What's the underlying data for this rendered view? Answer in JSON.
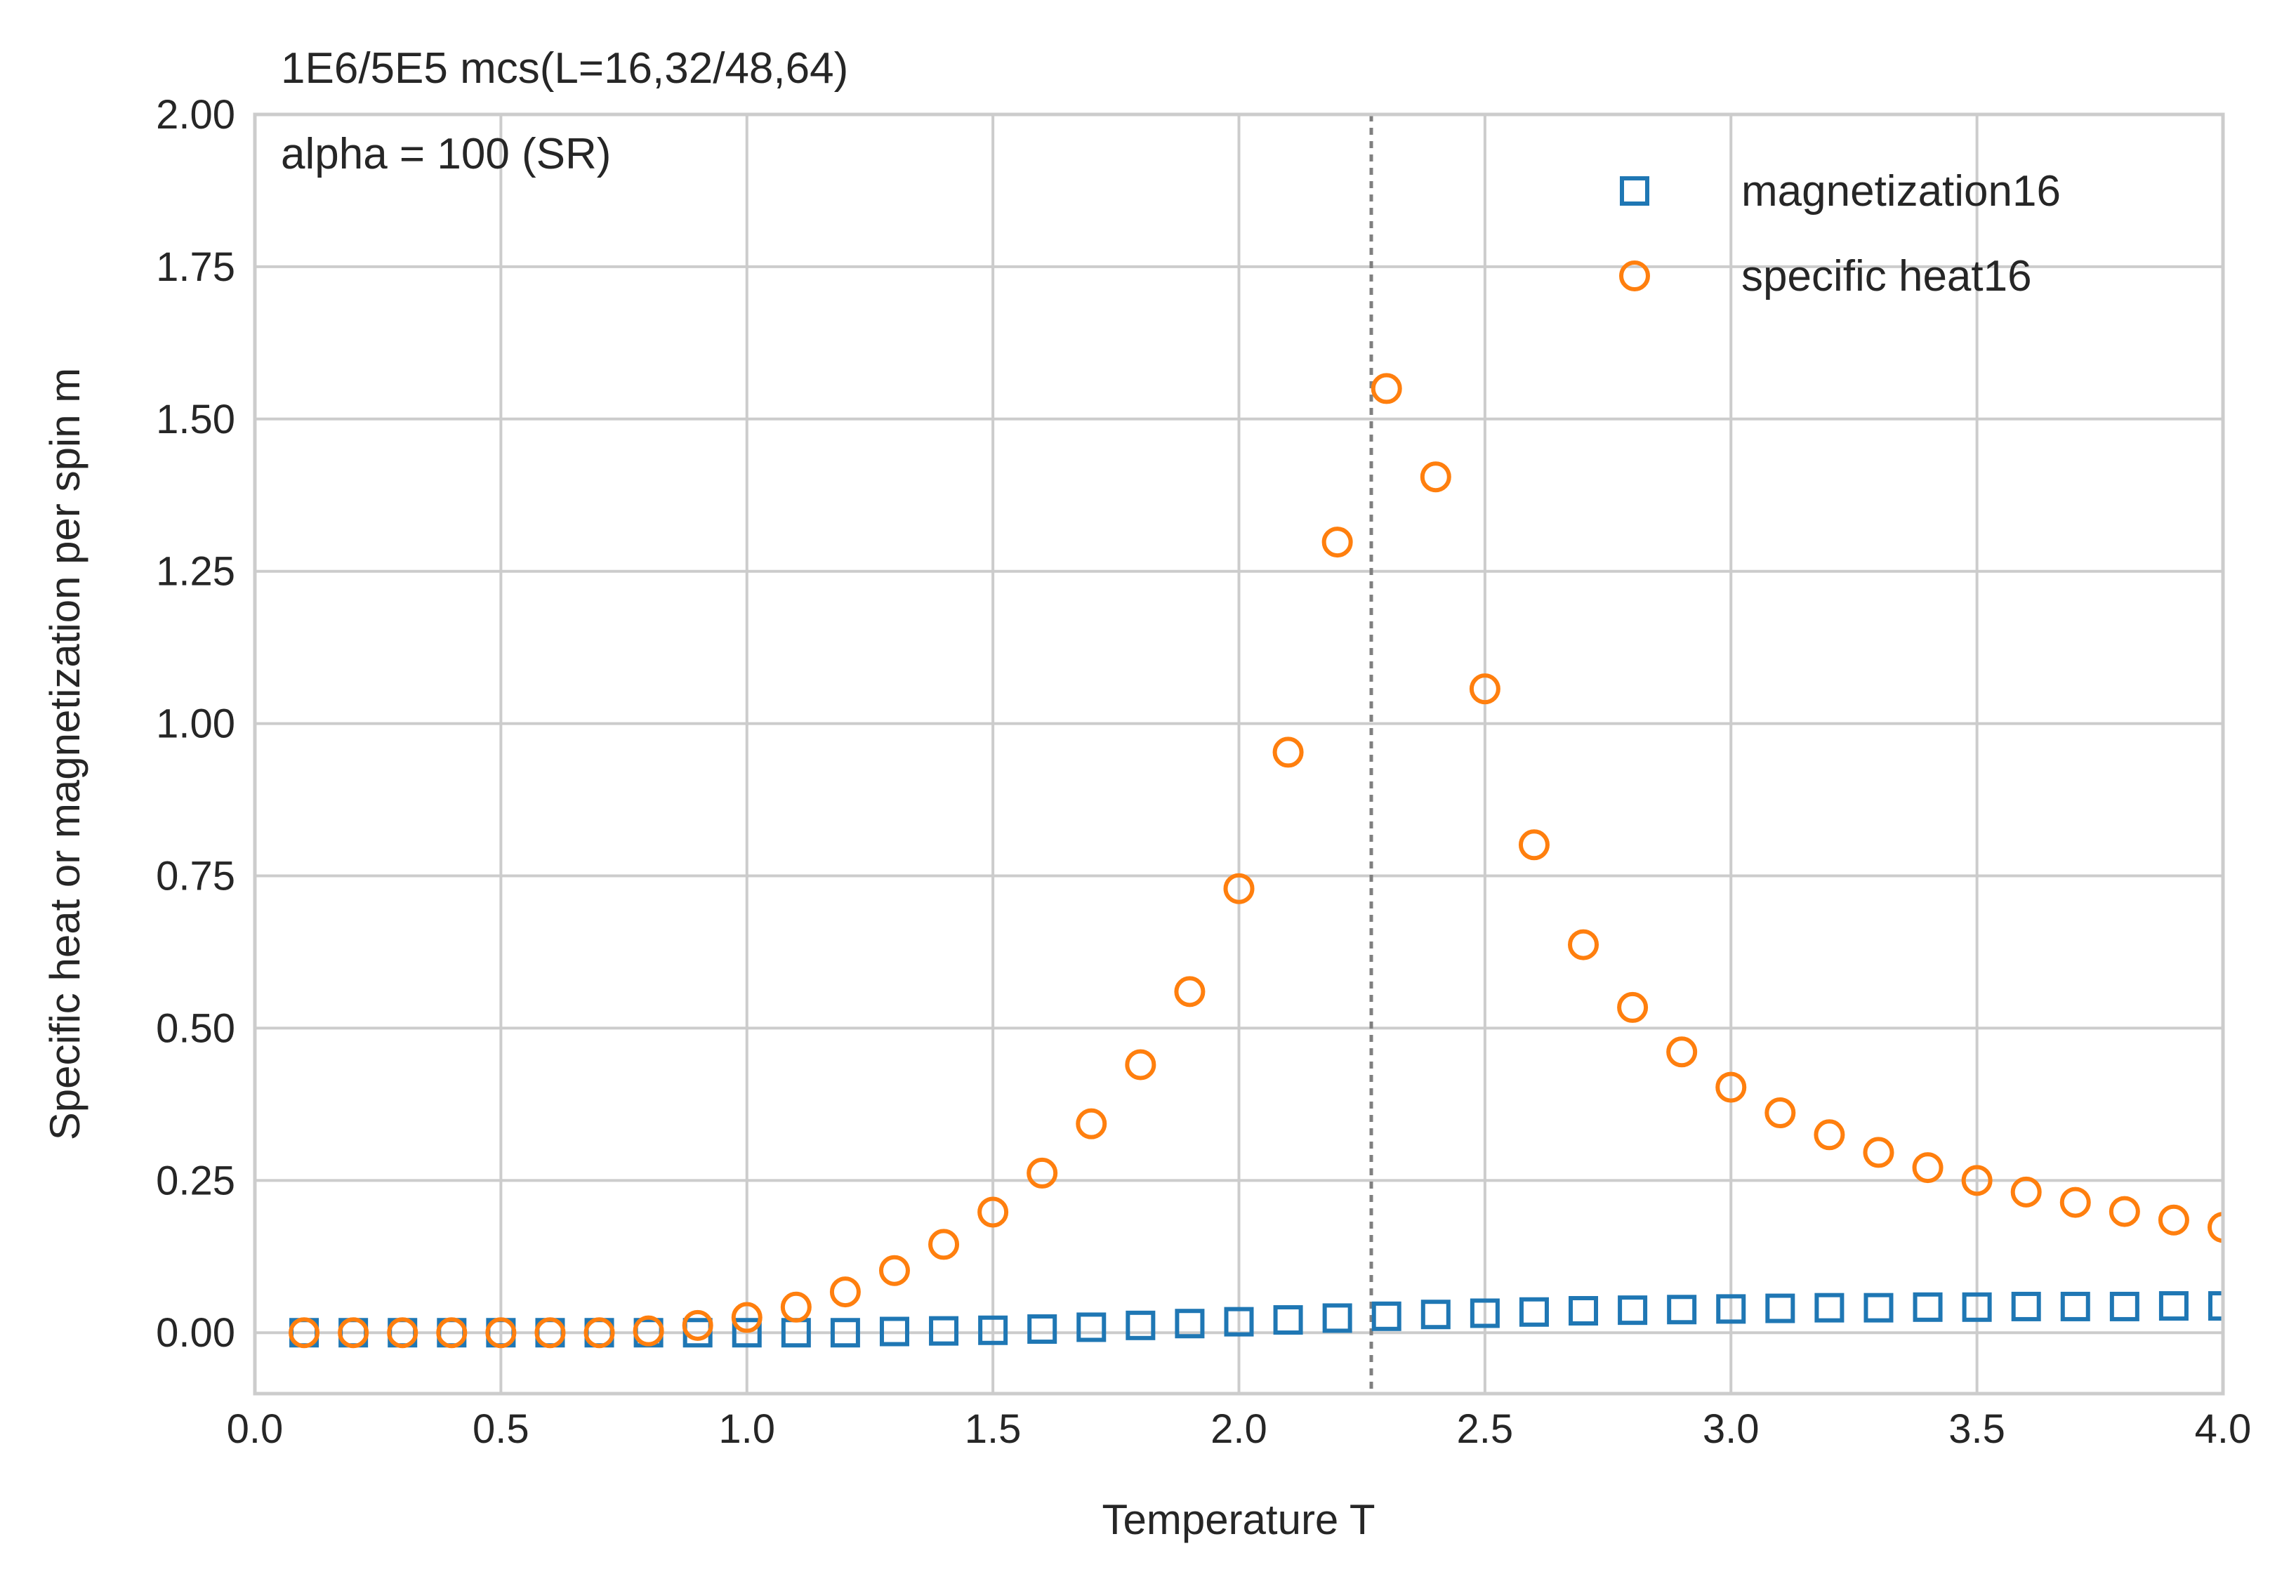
{
  "chart_data": {
    "type": "scatter",
    "title": "",
    "annotations": [
      "1E6/5E5 mcs(L=16,32/48,64)",
      "alpha = 100 (SR)"
    ],
    "xlabel": "Temperature T",
    "ylabel": "Specific heat or magnetization per spin m",
    "xlim": [
      0.0,
      4.0
    ],
    "ylim": [
      -0.1,
      2.0
    ],
    "xticks": [
      0.0,
      0.5,
      1.0,
      1.5,
      2.0,
      2.5,
      3.0,
      3.5,
      4.0
    ],
    "xtick_labels": [
      "0.0",
      "0.5",
      "1.0",
      "1.5",
      "2.0",
      "2.5",
      "3.0",
      "3.5",
      "4.0"
    ],
    "yticks": [
      0.0,
      0.25,
      0.5,
      0.75,
      1.0,
      1.25,
      1.5,
      1.75,
      2.0
    ],
    "ytick_labels": [
      "0.00",
      "0.25",
      "0.50",
      "0.75",
      "1.00",
      "1.25",
      "1.50",
      "1.75",
      "2.00"
    ],
    "grid": true,
    "legend_position": "top-right",
    "vline": 2.269,
    "x": [
      0.1,
      0.2,
      0.3,
      0.4,
      0.5,
      0.6,
      0.7,
      0.8,
      0.9,
      1.0,
      1.1,
      1.2,
      1.3,
      1.4,
      1.5,
      1.6,
      1.7,
      1.8,
      1.9,
      2.0,
      2.1,
      2.2,
      2.3,
      2.4,
      2.5,
      2.6,
      2.7,
      2.8,
      2.9,
      3.0,
      3.1,
      3.2,
      3.3,
      3.4,
      3.5,
      3.6,
      3.7,
      3.8,
      3.9,
      4.0
    ],
    "series": [
      {
        "name": "magnetization16",
        "marker": "square",
        "color": "#1f77b4",
        "values": [
          0.0,
          0.0,
          0.0,
          0.0,
          0.0,
          0.0,
          0.0,
          0.0,
          0.0,
          0.0,
          0.0,
          0.0,
          0.002,
          0.003,
          0.004,
          0.006,
          0.009,
          0.012,
          0.015,
          0.018,
          0.021,
          0.024,
          0.027,
          0.03,
          0.032,
          0.034,
          0.036,
          0.037,
          0.038,
          0.039,
          0.04,
          0.041,
          0.041,
          0.042,
          0.042,
          0.043,
          0.043,
          0.043,
          0.044,
          0.044
        ]
      },
      {
        "name": "specific heat16",
        "marker": "circle",
        "color": "#ff7f0e",
        "values": [
          0.0,
          0.0,
          0.0,
          0.0,
          0.0,
          0.0,
          0.0,
          0.003,
          0.012,
          0.025,
          0.042,
          0.067,
          0.102,
          0.145,
          0.198,
          0.262,
          0.343,
          0.44,
          0.56,
          0.729,
          0.953,
          1.298,
          1.55,
          1.405,
          1.057,
          0.801,
          0.637,
          0.534,
          0.461,
          0.403,
          0.361,
          0.325,
          0.296,
          0.271,
          0.25,
          0.231,
          0.214,
          0.199,
          0.185,
          0.173
        ]
      }
    ]
  }
}
